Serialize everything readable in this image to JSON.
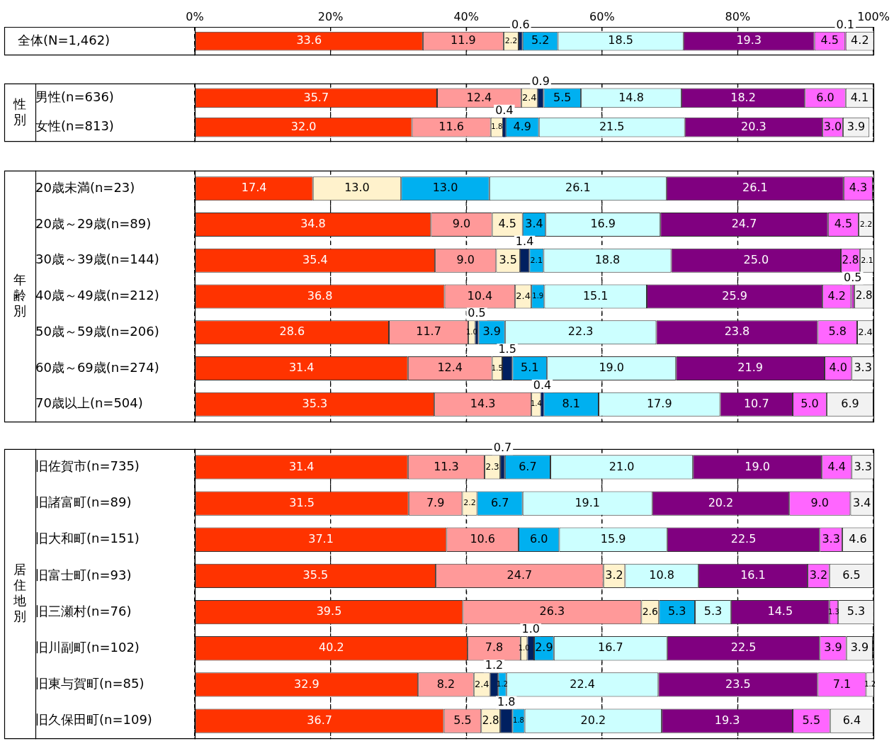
{
  "chart_data": [
    {
      "type": "bar",
      "orientation": "horizontal",
      "stacked": true,
      "grid": "x",
      "legend": false,
      "categories": [
        "全体(N=1,462)"
      ],
      "xlim": [
        0,
        100
      ],
      "xticks": [
        {
          "value": 0,
          "label": "0%"
        },
        {
          "value": 20,
          "label": "20%"
        },
        {
          "value": 40,
          "label": "40%"
        },
        {
          "value": 60,
          "label": "60%"
        },
        {
          "value": 80,
          "label": "80%"
        },
        {
          "value": 100,
          "label": "100%"
        }
      ],
      "series": [
        {
          "color": "#ff3300",
          "values": [
            33.6
          ],
          "value_labels": [
            "33.6"
          ]
        },
        {
          "color": "#ff9999",
          "values": [
            11.9
          ],
          "value_labels": [
            "11.9"
          ]
        },
        {
          "color": "#fff2cc",
          "values": [
            2.2
          ],
          "value_labels": [
            "2.2"
          ]
        },
        {
          "color": "#002060",
          "values": [
            0.6
          ],
          "value_labels": [
            "0.6"
          ]
        },
        {
          "color": "#00b0f0",
          "values": [
            5.2
          ],
          "value_labels": [
            "5.2"
          ]
        },
        {
          "color": "#ccffff",
          "values": [
            18.5
          ],
          "value_labels": [
            "18.5"
          ]
        },
        {
          "color": "#800080",
          "values": [
            19.3
          ],
          "value_labels": [
            "19.3"
          ]
        },
        {
          "color": "#ff66ff",
          "values": [
            4.5
          ],
          "value_labels": [
            "4.5"
          ]
        },
        {
          "color": "#cc33cc",
          "values": [
            0.1
          ],
          "value_labels": [
            "0.1"
          ]
        },
        {
          "color": "#f2f2f2",
          "values": [
            4.2
          ],
          "value_labels": [
            "4.2"
          ]
        }
      ]
    },
    {
      "type": "bar",
      "orientation": "horizontal",
      "stacked": true,
      "grid": "x",
      "legend": false,
      "tick_labels": "y",
      "ylabel": "性別",
      "categories": [
        "男性(n=636)",
        "女性(n=813)"
      ],
      "xlim": [
        0,
        100
      ],
      "xticks": [
        {
          "value": 0,
          "label": null
        },
        {
          "value": 20,
          "label": null
        },
        {
          "value": 40,
          "label": null
        },
        {
          "value": 60,
          "label": null
        },
        {
          "value": 80,
          "label": null
        },
        {
          "value": 100,
          "label": null
        }
      ],
      "series": [
        {
          "color": "#ff3300",
          "values": [
            35.7,
            32.0
          ],
          "value_labels": [
            "35.7",
            "32.0"
          ]
        },
        {
          "color": "#ff9999",
          "values": [
            12.4,
            11.6
          ],
          "value_labels": [
            "12.4",
            "11.6"
          ]
        },
        {
          "color": "#fff2cc",
          "values": [
            2.4,
            1.8
          ],
          "value_labels": [
            "2.4",
            "1.8"
          ]
        },
        {
          "color": "#002060",
          "values": [
            0.9,
            0.4
          ],
          "value_labels": [
            "0.9",
            "0.4"
          ]
        },
        {
          "color": "#00b0f0",
          "values": [
            5.5,
            4.9
          ],
          "value_labels": [
            "5.5",
            "4.9"
          ]
        },
        {
          "color": "#ccffff",
          "values": [
            14.8,
            21.5
          ],
          "value_labels": [
            "14.8",
            "21.5"
          ]
        },
        {
          "color": "#800080",
          "values": [
            18.2,
            20.3
          ],
          "value_labels": [
            "18.2",
            "20.3"
          ]
        },
        {
          "color": "#ff66ff",
          "values": [
            6.0,
            3.0
          ],
          "value_labels": [
            "6.0",
            "3.0"
          ]
        },
        {
          "color": "#cc33cc",
          "values": [
            null,
            null
          ],
          "value_labels": [
            null,
            null
          ]
        },
        {
          "color": "#f2f2f2",
          "values": [
            4.1,
            3.9
          ],
          "value_labels": [
            "4.1",
            "3.9"
          ]
        }
      ]
    },
    {
      "type": "bar",
      "orientation": "horizontal",
      "stacked": true,
      "grid": "x",
      "legend": false,
      "tick_labels": "y",
      "ylabel": "年齢別",
      "categories": [
        "20歳未満(n=23)",
        "20歳～29歳(n=89)",
        "30歳～39歳(n=144)",
        "40歳～49歳(n=212)",
        "50歳～59歳(n=206)",
        "60歳～69歳(n=274)",
        "70歳以上(n=504)"
      ],
      "xlim": [
        0,
        100
      ],
      "xticks": [
        {
          "value": 0,
          "label": null
        },
        {
          "value": 20,
          "label": null
        },
        {
          "value": 40,
          "label": null
        },
        {
          "value": 60,
          "label": null
        },
        {
          "value": 80,
          "label": null
        },
        {
          "value": 100,
          "label": null
        }
      ],
      "series": [
        {
          "color": "#ff3300",
          "values": [
            17.4,
            34.8,
            35.4,
            36.8,
            28.6,
            31.4,
            35.3
          ],
          "value_labels": [
            "17.4",
            "34.8",
            "35.4",
            "36.8",
            "28.6",
            "31.4",
            "35.3"
          ]
        },
        {
          "color": "#ff9999",
          "values": [
            null,
            9.0,
            9.0,
            10.4,
            11.7,
            12.4,
            14.3
          ],
          "value_labels": [
            null,
            "9.0",
            "9.0",
            "10.4",
            "11.7",
            "12.4",
            "14.3"
          ]
        },
        {
          "color": "#fff2cc",
          "values": [
            13.0,
            4.5,
            3.5,
            2.4,
            1.0,
            1.5,
            1.4
          ],
          "value_labels": [
            "13.0",
            "4.5",
            "3.5",
            "2.4",
            "1.0",
            "1.5",
            "1.4"
          ]
        },
        {
          "color": "#002060",
          "values": [
            null,
            null,
            1.4,
            null,
            0.5,
            1.5,
            0.4
          ],
          "value_labels": [
            null,
            null,
            "1.4",
            null,
            "0.5",
            "1.5",
            "0.4"
          ]
        },
        {
          "color": "#00b0f0",
          "values": [
            13.0,
            3.4,
            2.1,
            1.9,
            3.9,
            5.1,
            8.1
          ],
          "value_labels": [
            "13.0",
            "3.4",
            "2.1",
            "1.9",
            "3.9",
            "5.1",
            "8.1"
          ]
        },
        {
          "color": "#ccffff",
          "values": [
            26.1,
            16.9,
            18.8,
            15.1,
            22.3,
            19.0,
            17.9
          ],
          "value_labels": [
            "26.1",
            "16.9",
            "18.8",
            "15.1",
            "22.3",
            "19.0",
            "17.9"
          ]
        },
        {
          "color": "#800080",
          "values": [
            26.1,
            24.7,
            25.0,
            25.9,
            23.8,
            21.9,
            10.7
          ],
          "value_labels": [
            "26.1",
            "24.7",
            "25.0",
            "25.9",
            "23.8",
            "21.9",
            "10.7"
          ]
        },
        {
          "color": "#ff66ff",
          "values": [
            4.3,
            4.5,
            2.8,
            4.2,
            5.8,
            4.0,
            5.0
          ],
          "value_labels": [
            "4.3",
            "4.5",
            "2.8",
            "4.2",
            "5.8",
            "4.0",
            "5.0"
          ]
        },
        {
          "color": "#cc33cc",
          "values": [
            null,
            null,
            null,
            0.5,
            null,
            null,
            null
          ],
          "value_labels": [
            null,
            null,
            null,
            "0.5",
            null,
            null,
            null
          ]
        },
        {
          "color": "#f2f2f2",
          "values": [
            null,
            2.2,
            2.1,
            2.8,
            2.4,
            3.3,
            6.9
          ],
          "value_labels": [
            null,
            "2.2",
            "2.1",
            "2.8",
            "2.4",
            "3.3",
            "6.9"
          ]
        }
      ]
    },
    {
      "type": "bar",
      "orientation": "horizontal",
      "stacked": true,
      "grid": "x",
      "legend": false,
      "tick_labels": "y",
      "ylabel": "居住地別",
      "categories": [
        "旧佐賀市(n=735)",
        "旧諸富町(n=89)",
        "旧大和町(n=151)",
        "旧富士町(n=93)",
        "旧三瀬村(n=76)",
        "旧川副町(n=102)",
        "旧東与賀町(n=85)",
        "旧久保田町(n=109)"
      ],
      "xlim": [
        0,
        100
      ],
      "xticks": [
        {
          "value": 0,
          "label": null
        },
        {
          "value": 20,
          "label": null
        },
        {
          "value": 40,
          "label": null
        },
        {
          "value": 60,
          "label": null
        },
        {
          "value": 80,
          "label": null
        },
        {
          "value": 100,
          "label": null
        }
      ],
      "series": [
        {
          "color": "#ff3300",
          "values": [
            31.4,
            31.5,
            37.1,
            35.5,
            39.5,
            40.2,
            32.9,
            36.7
          ],
          "value_labels": [
            "31.4",
            "31.5",
            "37.1",
            "35.5",
            "39.5",
            "40.2",
            "32.9",
            "36.7"
          ]
        },
        {
          "color": "#ff9999",
          "values": [
            11.3,
            7.9,
            10.6,
            24.7,
            26.3,
            7.8,
            8.2,
            5.5
          ],
          "value_labels": [
            "11.3",
            "7.9",
            "10.6",
            "24.7",
            "26.3",
            "7.8",
            "8.2",
            "5.5"
          ]
        },
        {
          "color": "#fff2cc",
          "values": [
            2.3,
            2.2,
            null,
            3.2,
            2.6,
            1.0,
            2.4,
            2.8
          ],
          "value_labels": [
            "2.3",
            "2.2",
            null,
            "3.2",
            "2.6",
            "1.0",
            "2.4",
            "2.8"
          ]
        },
        {
          "color": "#002060",
          "values": [
            0.7,
            null,
            null,
            null,
            null,
            1.0,
            1.2,
            1.8
          ],
          "value_labels": [
            "0.7",
            null,
            null,
            null,
            null,
            "1.0",
            "1.2",
            "1.8"
          ]
        },
        {
          "color": "#00b0f0",
          "values": [
            6.7,
            6.7,
            6.0,
            null,
            5.3,
            2.9,
            1.2,
            1.8
          ],
          "value_labels": [
            "6.7",
            "6.7",
            "6.0",
            null,
            "5.3",
            "2.9",
            "1.2",
            "1.8"
          ]
        },
        {
          "color": "#ccffff",
          "values": [
            21.0,
            19.1,
            15.9,
            10.8,
            5.3,
            16.7,
            22.4,
            20.2
          ],
          "value_labels": [
            "21.0",
            "19.1",
            "15.9",
            "10.8",
            "5.3",
            "16.7",
            "22.4",
            "20.2"
          ]
        },
        {
          "color": "#800080",
          "values": [
            19.0,
            20.2,
            22.5,
            16.1,
            14.5,
            22.5,
            23.5,
            19.3
          ],
          "value_labels": [
            "19.0",
            "20.2",
            "22.5",
            "16.1",
            "14.5",
            "22.5",
            "23.5",
            "19.3"
          ]
        },
        {
          "color": "#ff66ff",
          "values": [
            4.4,
            9.0,
            3.3,
            3.2,
            1.3,
            3.9,
            7.1,
            5.5
          ],
          "value_labels": [
            "4.4",
            "9.0",
            "3.3",
            "3.2",
            "1.3",
            "3.9",
            "7.1",
            "5.5"
          ]
        },
        {
          "color": "#cc33cc",
          "values": [
            null,
            null,
            null,
            null,
            null,
            null,
            null,
            null
          ],
          "value_labels": [
            null,
            null,
            null,
            null,
            null,
            null,
            null,
            null
          ]
        },
        {
          "color": "#f2f2f2",
          "values": [
            3.3,
            3.4,
            4.6,
            6.5,
            5.3,
            3.9,
            1.2,
            6.4
          ],
          "value_labels": [
            "3.3",
            "3.4",
            "4.6",
            "6.5",
            "5.3",
            "3.9",
            "1.2",
            "6.4"
          ]
        }
      ]
    }
  ]
}
